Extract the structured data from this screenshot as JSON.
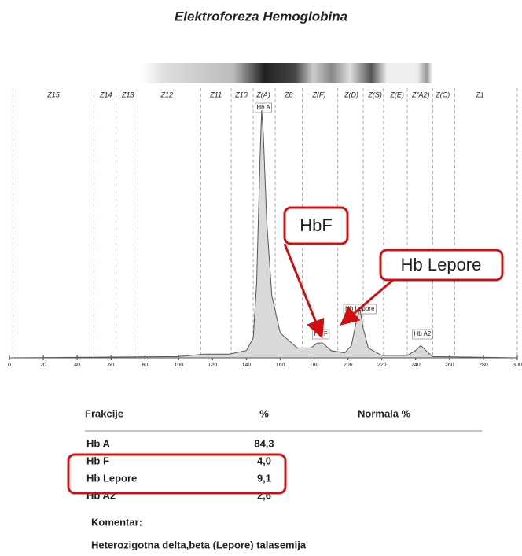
{
  "title": "Elektroforeza Hemoglobina",
  "chart_data": {
    "type": "line",
    "xlim": [
      0,
      300
    ],
    "xticks": [
      0,
      20,
      40,
      60,
      80,
      100,
      120,
      140,
      160,
      180,
      200,
      220,
      240,
      260,
      280,
      300
    ],
    "ylim": [
      0,
      108
    ],
    "zones": [
      {
        "label": "Z15",
        "x": 26
      },
      {
        "label": "Z14",
        "x": 57
      },
      {
        "label": "Z13",
        "x": 70
      },
      {
        "label": "Z12",
        "x": 93
      },
      {
        "label": "Z11",
        "x": 122
      },
      {
        "label": "Z10",
        "x": 137
      },
      {
        "label": "Z(A)",
        "x": 150
      },
      {
        "label": "Z8",
        "x": 165
      },
      {
        "label": "Z(F)",
        "x": 183
      },
      {
        "label": "Z(D)",
        "x": 202
      },
      {
        "label": "Z(S)",
        "x": 216
      },
      {
        "label": "Z(E)",
        "x": 229
      },
      {
        "label": "Z(A2)",
        "x": 243
      },
      {
        "label": "Z(C)",
        "x": 256
      },
      {
        "label": "Z1",
        "x": 278
      }
    ],
    "zone_boundaries": [
      2,
      50,
      63,
      76,
      113,
      131,
      144,
      157,
      173,
      194,
      209,
      221,
      235,
      250,
      263,
      300
    ],
    "peak_labels": [
      {
        "label": "Hb A",
        "x": 150
      },
      {
        "label": "Hb F",
        "x": 184
      },
      {
        "label": "Hb Lepore",
        "x": 207
      },
      {
        "label": "Hb A2",
        "x": 244
      }
    ],
    "x": [
      0,
      100,
      115,
      130,
      140,
      144,
      146,
      148,
      149,
      150,
      152,
      155,
      160,
      170,
      178,
      182,
      185,
      190,
      198,
      202,
      205,
      207,
      209,
      212,
      220,
      235,
      240,
      243,
      246,
      250,
      300
    ],
    "values": [
      0,
      0.5,
      1.5,
      1.5,
      3,
      8,
      30,
      80,
      100,
      90,
      55,
      25,
      10,
      4,
      4,
      6,
      6,
      3,
      2,
      5,
      15,
      20,
      12,
      4,
      1,
      1,
      3,
      5,
      3,
      0.5,
      0
    ],
    "color": "#555"
  },
  "callouts": [
    "HbF",
    "Hb Lepore"
  ],
  "table": {
    "header": [
      "Frakcije",
      "%",
      "Normala %"
    ],
    "rows": [
      [
        "Hb A",
        "84,3"
      ],
      [
        "Hb F",
        "4,0"
      ],
      [
        "Hb Lepore",
        "9,1"
      ],
      [
        "Hb A2",
        "2,6"
      ]
    ]
  },
  "comment": {
    "label": "Komentar:",
    "text": "Heterozigotna delta,beta (Lepore) talasemija"
  }
}
